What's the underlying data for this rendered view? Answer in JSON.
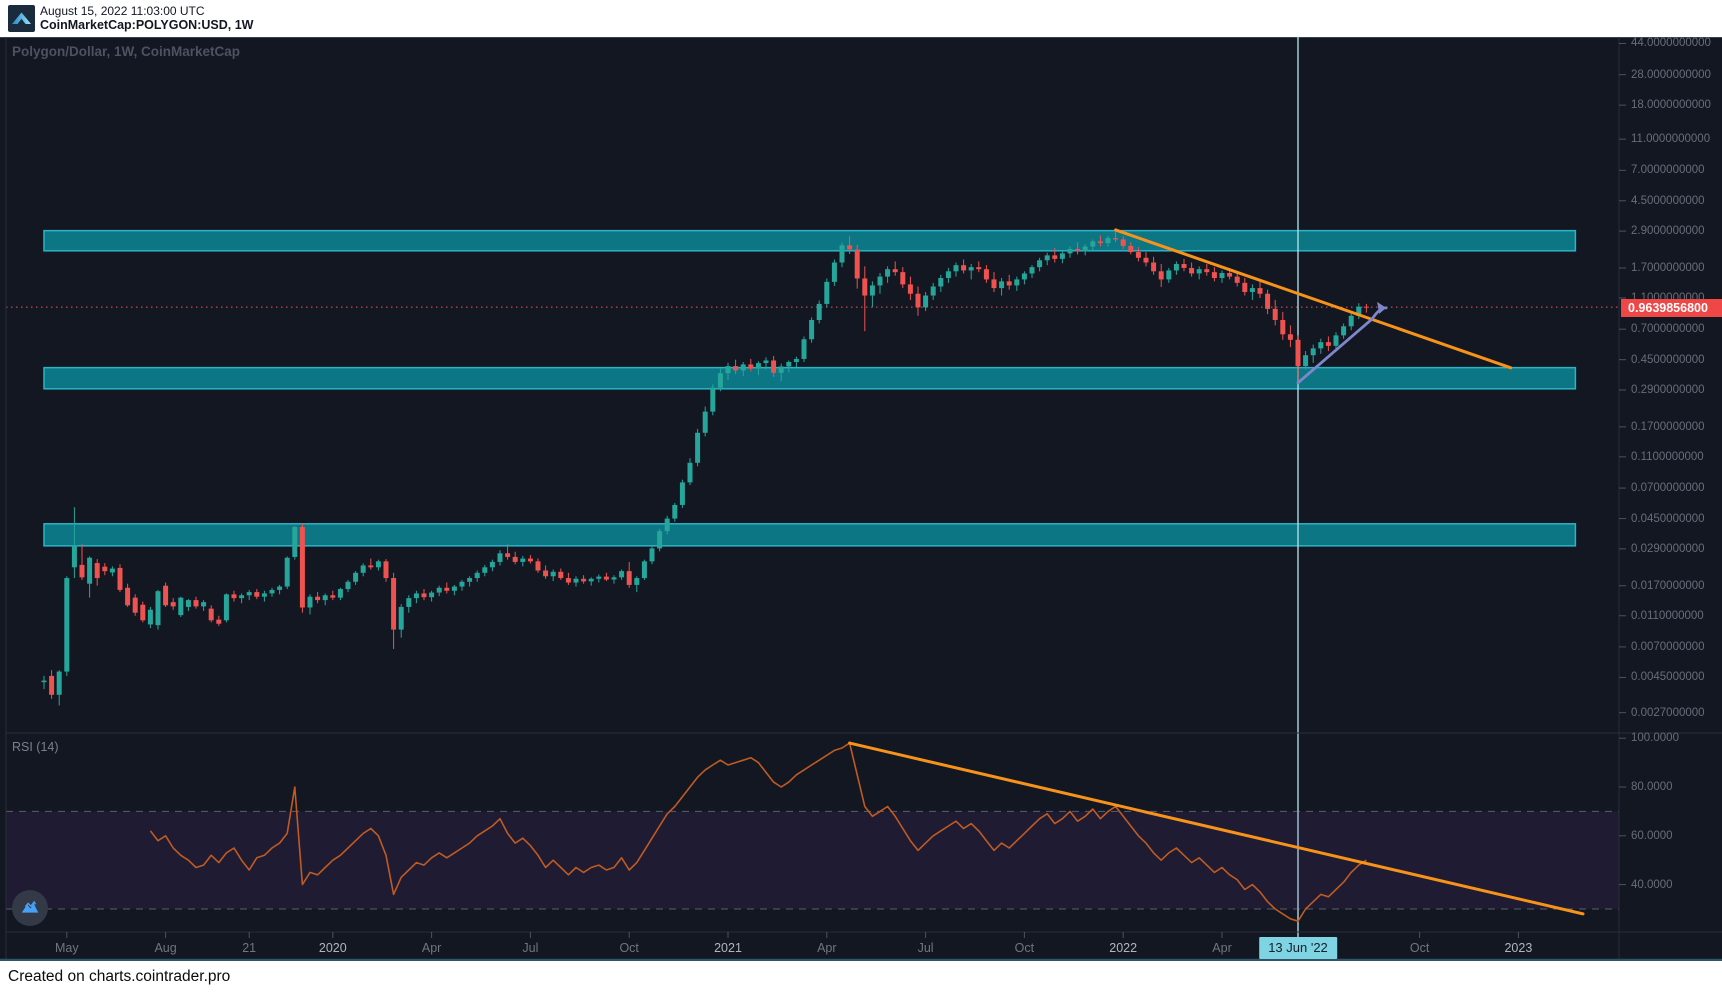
{
  "header": {
    "timestamp": "August 15, 2022 11:03:00 UTC",
    "symbol_line": "CoinMarketCap:POLYGON:USD, 1W"
  },
  "chart": {
    "title": "Polygon/Dollar, 1W, CoinMarketCap",
    "rsi_label": "RSI (14)",
    "event_label": "13 Jun '22",
    "last_price_label": "0.9639856800"
  },
  "footer": {
    "attribution": "Created on charts.cointrader.pro"
  },
  "price_axis": [
    {
      "text": "44.0000000000",
      "value": 44
    },
    {
      "text": "28.0000000000",
      "value": 28
    },
    {
      "text": "18.0000000000",
      "value": 18
    },
    {
      "text": "11.0000000000",
      "value": 11
    },
    {
      "text": "7.0000000000",
      "value": 7
    },
    {
      "text": "4.5000000000",
      "value": 4.5
    },
    {
      "text": "2.9000000000",
      "value": 2.9
    },
    {
      "text": "1.7000000000",
      "value": 1.7
    },
    {
      "text": "1.1000000000",
      "value": 1.1
    },
    {
      "text": "0.7000000000",
      "value": 0.7
    },
    {
      "text": "0.4500000000",
      "value": 0.45
    },
    {
      "text": "0.2900000000",
      "value": 0.29
    },
    {
      "text": "0.1700000000",
      "value": 0.17
    },
    {
      "text": "0.1100000000",
      "value": 0.11
    },
    {
      "text": "0.0700000000",
      "value": 0.07
    },
    {
      "text": "0.0450000000",
      "value": 0.045
    },
    {
      "text": "0.0290000000",
      "value": 0.029
    },
    {
      "text": "0.0170000000",
      "value": 0.017
    },
    {
      "text": "0.0110000000",
      "value": 0.011
    },
    {
      "text": "0.0070000000",
      "value": 0.007
    },
    {
      "text": "0.0045000000",
      "value": 0.0045
    },
    {
      "text": "0.0027000000",
      "value": 0.0027
    }
  ],
  "rsi_axis": [
    {
      "text": "100.0000",
      "value": 100
    },
    {
      "text": "80.0000",
      "value": 80
    },
    {
      "text": "60.0000",
      "value": 60
    },
    {
      "text": "40.0000",
      "value": 40
    }
  ],
  "time_axis": [
    {
      "label": "May",
      "week": 3,
      "year": false
    },
    {
      "label": "Aug",
      "week": 16,
      "year": false
    },
    {
      "label": "21",
      "week": 27,
      "year": false
    },
    {
      "label": "2020",
      "week": 38,
      "year": true
    },
    {
      "label": "Apr",
      "week": 51,
      "year": false
    },
    {
      "label": "Jul",
      "week": 64,
      "year": false
    },
    {
      "label": "Oct",
      "week": 77,
      "year": false
    },
    {
      "label": "2021",
      "week": 90,
      "year": true
    },
    {
      "label": "Apr",
      "week": 103,
      "year": false
    },
    {
      "label": "Jul",
      "week": 116,
      "year": false
    },
    {
      "label": "Oct",
      "week": 129,
      "year": false
    },
    {
      "label": "2022",
      "week": 142,
      "year": true
    },
    {
      "label": "Apr",
      "week": 155,
      "year": false
    },
    {
      "label": "Oct",
      "week": 181,
      "year": false
    },
    {
      "label": "2023",
      "week": 194,
      "year": true
    }
  ],
  "chart_data": {
    "type": "candlestick",
    "title": "Polygon/Dollar, 1W, CoinMarketCap",
    "interval": "1W",
    "scale": "log",
    "last_price": 0.96398568,
    "indicator": {
      "name": "RSI",
      "period": 14,
      "overbought": 70,
      "oversold": 30
    },
    "candles": [
      [
        0.0042,
        0.0046,
        0.0038,
        0.0043
      ],
      [
        0.0046,
        0.005,
        0.0033,
        0.0035
      ],
      [
        0.0035,
        0.005,
        0.003,
        0.0049
      ],
      [
        0.0049,
        0.0195,
        0.0046,
        0.019
      ],
      [
        0.0222,
        0.053,
        0.019,
        0.0306
      ],
      [
        0.023,
        0.031,
        0.0185,
        0.0192
      ],
      [
        0.0175,
        0.026,
        0.0143,
        0.0255
      ],
      [
        0.0236,
        0.025,
        0.017,
        0.019
      ],
      [
        0.0224,
        0.0236,
        0.0198,
        0.021
      ],
      [
        0.0206,
        0.0225,
        0.0195,
        0.0218
      ],
      [
        0.022,
        0.0232,
        0.0155,
        0.016
      ],
      [
        0.0165,
        0.0175,
        0.0125,
        0.0128
      ],
      [
        0.0143,
        0.015,
        0.011,
        0.0115
      ],
      [
        0.0129,
        0.0135,
        0.01,
        0.0103
      ],
      [
        0.0097,
        0.0125,
        0.0092,
        0.012
      ],
      [
        0.0096,
        0.016,
        0.009,
        0.0157
      ],
      [
        0.017,
        0.0178,
        0.0125,
        0.0128
      ],
      [
        0.0134,
        0.0142,
        0.012,
        0.0126
      ],
      [
        0.0111,
        0.0145,
        0.0108,
        0.0143
      ],
      [
        0.0125,
        0.014,
        0.0118,
        0.0138
      ],
      [
        0.0138,
        0.0145,
        0.0122,
        0.0126
      ],
      [
        0.0126,
        0.0138,
        0.0118,
        0.0134
      ],
      [
        0.0122,
        0.0128,
        0.01,
        0.0103
      ],
      [
        0.0104,
        0.011,
        0.0095,
        0.0098
      ],
      [
        0.0103,
        0.0152,
        0.01,
        0.015
      ],
      [
        0.015,
        0.0158,
        0.0135,
        0.0142
      ],
      [
        0.0142,
        0.0152,
        0.0132,
        0.0148
      ],
      [
        0.0148,
        0.016,
        0.0138,
        0.0155
      ],
      [
        0.0155,
        0.0162,
        0.014,
        0.0145
      ],
      [
        0.0145,
        0.0158,
        0.0135,
        0.0152
      ],
      [
        0.0152,
        0.0165,
        0.0145,
        0.016
      ],
      [
        0.016,
        0.0172,
        0.015,
        0.0168
      ],
      [
        0.0168,
        0.026,
        0.0162,
        0.0255
      ],
      [
        0.0258,
        0.0405,
        0.0248,
        0.0398
      ],
      [
        0.0398,
        0.042,
        0.0115,
        0.0124
      ],
      [
        0.0124,
        0.015,
        0.0112,
        0.0145
      ],
      [
        0.0145,
        0.0155,
        0.0132,
        0.0138
      ],
      [
        0.0138,
        0.0152,
        0.0128,
        0.0148
      ],
      [
        0.0148,
        0.0158,
        0.0138,
        0.0143
      ],
      [
        0.0143,
        0.0165,
        0.0138,
        0.0162
      ],
      [
        0.0162,
        0.0185,
        0.0155,
        0.018
      ],
      [
        0.018,
        0.021,
        0.0172,
        0.0205
      ],
      [
        0.0205,
        0.0235,
        0.0195,
        0.0228
      ],
      [
        0.0228,
        0.0252,
        0.0215,
        0.0222
      ],
      [
        0.0222,
        0.0248,
        0.0212,
        0.0242
      ],
      [
        0.0242,
        0.025,
        0.018,
        0.019
      ],
      [
        0.019,
        0.0205,
        0.0068,
        0.009
      ],
      [
        0.009,
        0.013,
        0.008,
        0.0125
      ],
      [
        0.0125,
        0.0148,
        0.0115,
        0.0142
      ],
      [
        0.0142,
        0.0158,
        0.0132,
        0.0152
      ],
      [
        0.0152,
        0.0162,
        0.0138,
        0.0144
      ],
      [
        0.0144,
        0.0158,
        0.0135,
        0.0154
      ],
      [
        0.0154,
        0.017,
        0.0146,
        0.0165
      ],
      [
        0.0165,
        0.0178,
        0.0152,
        0.0158
      ],
      [
        0.0158,
        0.0172,
        0.0148,
        0.0168
      ],
      [
        0.0168,
        0.0185,
        0.0158,
        0.018
      ],
      [
        0.018,
        0.0195,
        0.0168,
        0.019
      ],
      [
        0.019,
        0.0212,
        0.018,
        0.0205
      ],
      [
        0.0205,
        0.023,
        0.0195,
        0.0222
      ],
      [
        0.0222,
        0.0248,
        0.021,
        0.024
      ],
      [
        0.024,
        0.0285,
        0.0228,
        0.0272
      ],
      [
        0.0272,
        0.031,
        0.0248,
        0.0258
      ],
      [
        0.0258,
        0.0278,
        0.0232,
        0.024
      ],
      [
        0.024,
        0.0262,
        0.0225,
        0.0252
      ],
      [
        0.0252,
        0.0265,
        0.0235,
        0.0242
      ],
      [
        0.0242,
        0.0252,
        0.0205,
        0.0212
      ],
      [
        0.0212,
        0.0228,
        0.0188,
        0.0195
      ],
      [
        0.0195,
        0.0215,
        0.0182,
        0.0208
      ],
      [
        0.0208,
        0.0218,
        0.0185,
        0.019
      ],
      [
        0.019,
        0.0205,
        0.0172,
        0.0178
      ],
      [
        0.0178,
        0.0195,
        0.0168,
        0.0188
      ],
      [
        0.0188,
        0.0198,
        0.0175,
        0.0181
      ],
      [
        0.0181,
        0.0192,
        0.017,
        0.0188
      ],
      [
        0.0188,
        0.02,
        0.0178,
        0.0194
      ],
      [
        0.0194,
        0.0205,
        0.0182,
        0.0186
      ],
      [
        0.0186,
        0.0198,
        0.0175,
        0.0192
      ],
      [
        0.0192,
        0.0215,
        0.0185,
        0.021
      ],
      [
        0.021,
        0.024,
        0.0165,
        0.0172
      ],
      [
        0.0172,
        0.0195,
        0.0155,
        0.019
      ],
      [
        0.019,
        0.0248,
        0.0185,
        0.0242
      ],
      [
        0.0242,
        0.03,
        0.0232,
        0.0292
      ],
      [
        0.0292,
        0.0388,
        0.028,
        0.0375
      ],
      [
        0.0375,
        0.0468,
        0.0358,
        0.045
      ],
      [
        0.045,
        0.0565,
        0.043,
        0.0548
      ],
      [
        0.0548,
        0.079,
        0.0525,
        0.076
      ],
      [
        0.076,
        0.108,
        0.073,
        0.101
      ],
      [
        0.101,
        0.165,
        0.096,
        0.156
      ],
      [
        0.156,
        0.228,
        0.148,
        0.212
      ],
      [
        0.212,
        0.315,
        0.201,
        0.3
      ],
      [
        0.3,
        0.395,
        0.285,
        0.37
      ],
      [
        0.37,
        0.43,
        0.335,
        0.41
      ],
      [
        0.41,
        0.45,
        0.365,
        0.385
      ],
      [
        0.385,
        0.435,
        0.355,
        0.42
      ],
      [
        0.42,
        0.455,
        0.38,
        0.395
      ],
      [
        0.395,
        0.44,
        0.36,
        0.428
      ],
      [
        0.428,
        0.465,
        0.39,
        0.445
      ],
      [
        0.445,
        0.475,
        0.35,
        0.372
      ],
      [
        0.372,
        0.425,
        0.33,
        0.408
      ],
      [
        0.408,
        0.445,
        0.375,
        0.435
      ],
      [
        0.435,
        0.47,
        0.405,
        0.455
      ],
      [
        0.455,
        0.63,
        0.435,
        0.605
      ],
      [
        0.605,
        0.83,
        0.575,
        0.8
      ],
      [
        0.8,
        1.06,
        0.76,
        1.01
      ],
      [
        1.01,
        1.46,
        0.96,
        1.39
      ],
      [
        1.39,
        1.92,
        1.31,
        1.84
      ],
      [
        1.84,
        2.46,
        1.72,
        2.36
      ],
      [
        2.36,
        2.7,
        2.08,
        2.22
      ],
      [
        2.22,
        2.38,
        1.26,
        1.46
      ],
      [
        1.46,
        1.74,
        0.68,
        1.14
      ],
      [
        1.14,
        1.4,
        0.96,
        1.32
      ],
      [
        1.32,
        1.58,
        1.17,
        1.5
      ],
      [
        1.5,
        1.74,
        1.37,
        1.67
      ],
      [
        1.67,
        1.87,
        1.52,
        1.6
      ],
      [
        1.6,
        1.72,
        1.27,
        1.34
      ],
      [
        1.34,
        1.5,
        1.07,
        1.17
      ],
      [
        1.17,
        1.3,
        0.85,
        0.96
      ],
      [
        0.96,
        1.2,
        0.91,
        1.14
      ],
      [
        1.14,
        1.37,
        1.07,
        1.3
      ],
      [
        1.3,
        1.54,
        1.2,
        1.47
      ],
      [
        1.47,
        1.7,
        1.37,
        1.62
      ],
      [
        1.62,
        1.84,
        1.5,
        1.77
      ],
      [
        1.77,
        1.92,
        1.57,
        1.64
      ],
      [
        1.64,
        1.8,
        1.44,
        1.72
      ],
      [
        1.72,
        1.87,
        1.6,
        1.67
      ],
      [
        1.67,
        1.77,
        1.37,
        1.44
      ],
      [
        1.44,
        1.6,
        1.2,
        1.27
      ],
      [
        1.27,
        1.47,
        1.14,
        1.4
      ],
      [
        1.4,
        1.54,
        1.24,
        1.32
      ],
      [
        1.32,
        1.5,
        1.22,
        1.44
      ],
      [
        1.44,
        1.62,
        1.34,
        1.57
      ],
      [
        1.57,
        1.77,
        1.47,
        1.72
      ],
      [
        1.72,
        1.97,
        1.62,
        1.9
      ],
      [
        1.9,
        2.12,
        1.77,
        2.04
      ],
      [
        2.04,
        2.27,
        1.84,
        1.94
      ],
      [
        1.94,
        2.17,
        1.82,
        2.1
      ],
      [
        2.1,
        2.32,
        1.97,
        2.24
      ],
      [
        2.24,
        2.47,
        2.07,
        2.17
      ],
      [
        2.17,
        2.4,
        2.04,
        2.32
      ],
      [
        2.32,
        2.57,
        2.2,
        2.5
      ],
      [
        2.5,
        2.72,
        2.32,
        2.44
      ],
      [
        2.44,
        2.7,
        2.32,
        2.62
      ],
      [
        2.62,
        2.95,
        2.47,
        2.57
      ],
      [
        2.57,
        2.7,
        2.24,
        2.34
      ],
      [
        2.34,
        2.47,
        2.07,
        2.14
      ],
      [
        2.14,
        2.3,
        1.87,
        1.97
      ],
      [
        1.97,
        2.14,
        1.74,
        1.84
      ],
      [
        1.84,
        2.0,
        1.54,
        1.62
      ],
      [
        1.62,
        1.8,
        1.29,
        1.44
      ],
      [
        1.44,
        1.7,
        1.37,
        1.64
      ],
      [
        1.64,
        1.87,
        1.54,
        1.8
      ],
      [
        1.8,
        1.94,
        1.62,
        1.7
      ],
      [
        1.7,
        1.84,
        1.5,
        1.57
      ],
      [
        1.57,
        1.74,
        1.44,
        1.67
      ],
      [
        1.67,
        1.8,
        1.52,
        1.6
      ],
      [
        1.6,
        1.72,
        1.4,
        1.47
      ],
      [
        1.47,
        1.64,
        1.37,
        1.58
      ],
      [
        1.58,
        1.7,
        1.44,
        1.5
      ],
      [
        1.5,
        1.62,
        1.3,
        1.37
      ],
      [
        1.37,
        1.47,
        1.14,
        1.2
      ],
      [
        1.2,
        1.34,
        1.07,
        1.27
      ],
      [
        1.27,
        1.4,
        1.1,
        1.17
      ],
      [
        1.17,
        1.24,
        0.87,
        0.94
      ],
      [
        0.94,
        1.07,
        0.74,
        0.8
      ],
      [
        0.8,
        0.9,
        0.6,
        0.65
      ],
      [
        0.65,
        0.74,
        0.54,
        0.6
      ],
      [
        0.6,
        0.64,
        0.316,
        0.41
      ],
      [
        0.41,
        0.51,
        0.39,
        0.48
      ],
      [
        0.48,
        0.56,
        0.43,
        0.53
      ],
      [
        0.53,
        0.61,
        0.49,
        0.58
      ],
      [
        0.58,
        0.63,
        0.51,
        0.55
      ],
      [
        0.55,
        0.67,
        0.53,
        0.64
      ],
      [
        0.64,
        0.76,
        0.61,
        0.73
      ],
      [
        0.73,
        0.89,
        0.69,
        0.85
      ],
      [
        0.85,
        1.02,
        0.81,
        0.97
      ],
      [
        0.97,
        1.01,
        0.89,
        0.96398568
      ]
    ],
    "rsi": {
      "first_index": 14,
      "values": [
        62,
        58,
        60,
        55,
        52,
        50,
        47,
        48,
        52,
        49,
        53,
        55,
        50,
        46,
        51,
        52,
        55,
        57,
        61,
        80,
        40,
        45,
        44,
        47,
        50,
        52,
        55,
        58,
        61,
        63,
        60,
        52,
        36,
        43,
        46,
        49,
        48,
        51,
        53,
        51,
        53,
        55,
        57,
        60,
        62,
        64,
        67,
        61,
        57,
        59,
        56,
        52,
        47,
        50,
        47,
        44,
        47,
        45,
        47,
        48,
        46,
        47,
        51,
        46,
        49,
        54,
        59,
        64,
        69,
        72,
        76,
        80,
        84,
        87,
        89,
        91,
        89,
        90,
        91,
        92,
        90,
        86,
        82,
        80,
        82,
        85,
        87,
        89,
        91,
        93,
        95,
        96,
        98,
        85,
        72,
        68,
        70,
        72,
        68,
        63,
        58,
        54,
        57,
        60,
        62,
        64,
        66,
        63,
        65,
        62,
        58,
        54,
        57,
        55,
        58,
        61,
        64,
        67,
        69,
        65,
        67,
        70,
        66,
        68,
        71,
        67,
        70,
        72,
        68,
        64,
        60,
        57,
        53,
        50,
        53,
        55,
        52,
        49,
        51,
        48,
        45,
        47,
        44,
        42,
        38,
        40,
        37,
        33,
        30,
        28,
        26,
        25,
        30,
        33,
        36,
        35,
        38,
        41,
        45,
        48,
        50
      ]
    },
    "zones": [
      {
        "name": "resistance-zone-high",
        "top": 2.92,
        "bottom": 2.18
      },
      {
        "name": "support-zone-mid",
        "top": 0.401,
        "bottom": 0.295
      },
      {
        "name": "support-zone-low",
        "top": 0.0417,
        "bottom": 0.0303
      }
    ],
    "zone_span_weeks": [
      0,
      201.5
    ],
    "trendlines": [
      {
        "name": "price-downtrend-line",
        "from_week": 141,
        "from_price": 2.95,
        "to_week": 193,
        "to_price": 0.4
      },
      {
        "name": "rsi-downtrend-line",
        "from_week": 106,
        "from_value": 98,
        "to_week": 202.5,
        "to_value": 28
      }
    ],
    "arrow": {
      "from_week": 165,
      "from_price": 0.322,
      "to_week": 176.6,
      "to_price": 0.995
    },
    "event_vline_week": 165,
    "colors": {
      "background": "#131722",
      "up": "#26a69a",
      "down": "#ef5350",
      "zone_fill": "#0d7b8b",
      "zone_border": "#2bb3c6",
      "trend": "#f7931a",
      "arrow": "#7d88cc",
      "rsi_line": "#bf5b22",
      "rsi_zone_fill": "rgba(128,64,200,0.10)",
      "vline": "#b5e2ec",
      "last_price_bg": "#ef4646",
      "dotted_price": "#f0545c",
      "separator": "#2a2e39",
      "tick": "#4e525d"
    }
  }
}
